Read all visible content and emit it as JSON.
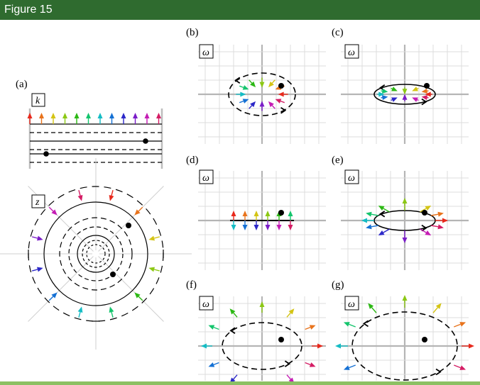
{
  "header": {
    "title": "Figure 15"
  },
  "panels": {
    "a": {
      "letter": "(a)",
      "k_label": "k",
      "z_label": "z"
    },
    "b": {
      "letter": "(b)",
      "var": "ω"
    },
    "c": {
      "letter": "(c)",
      "var": "ω"
    },
    "d": {
      "letter": "(d)",
      "var": "ω"
    },
    "e": {
      "letter": "(e)",
      "var": "ω"
    },
    "f": {
      "letter": "(f)",
      "var": "ω"
    },
    "g": {
      "letter": "(g)",
      "var": "ω"
    }
  },
  "colors": {
    "header": "#2f6b2f",
    "rule": "#8cc063",
    "arrows": [
      "#e8291c",
      "#e8731c",
      "#d4c414",
      "#8cc814",
      "#2cb814",
      "#14c46c",
      "#14bcc4",
      "#1470d4",
      "#2c28c8",
      "#7a1cc8",
      "#c41cb4",
      "#d41c64"
    ]
  }
}
